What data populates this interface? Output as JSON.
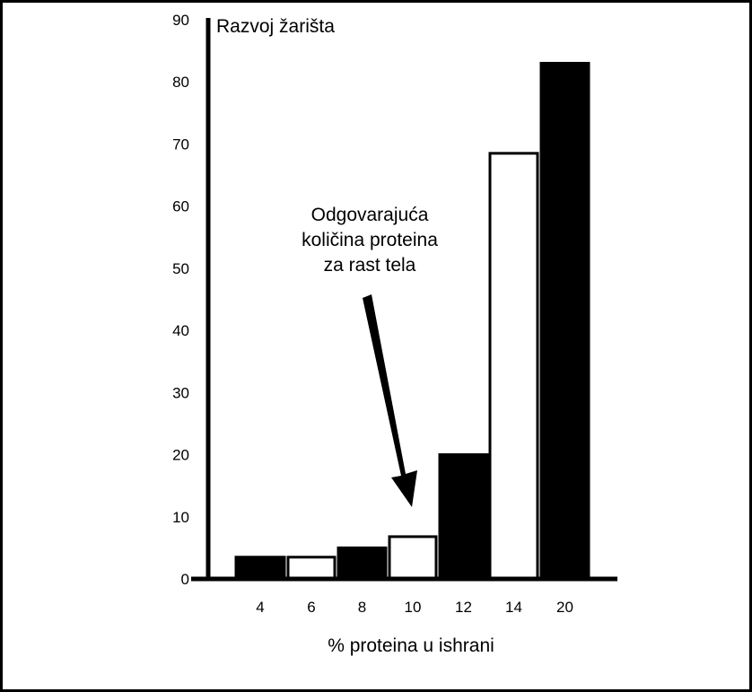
{
  "chart_data": {
    "type": "bar",
    "title": "",
    "ylabel": "Razvoj žarišta",
    "xlabel": "% proteina u ishrani",
    "categories": [
      "4",
      "6",
      "8",
      "10",
      "12",
      "14",
      "20"
    ],
    "values": [
      3.5,
      3.5,
      5,
      6.8,
      20,
      68.5,
      83
    ],
    "bar_fills": [
      "black",
      "white",
      "black",
      "white",
      "black",
      "white",
      "black"
    ],
    "ylim": [
      0,
      90
    ],
    "yticks": [
      0,
      10,
      20,
      30,
      40,
      50,
      60,
      70,
      80,
      90
    ],
    "grid": false,
    "annotation": {
      "lines": [
        "Odgovarajuća",
        "količina proteina",
        "za rast tela"
      ],
      "points_to": "10"
    }
  },
  "colors": {
    "bar_dark": "#000000",
    "bar_light": "#ffffff",
    "axis": "#000000"
  }
}
